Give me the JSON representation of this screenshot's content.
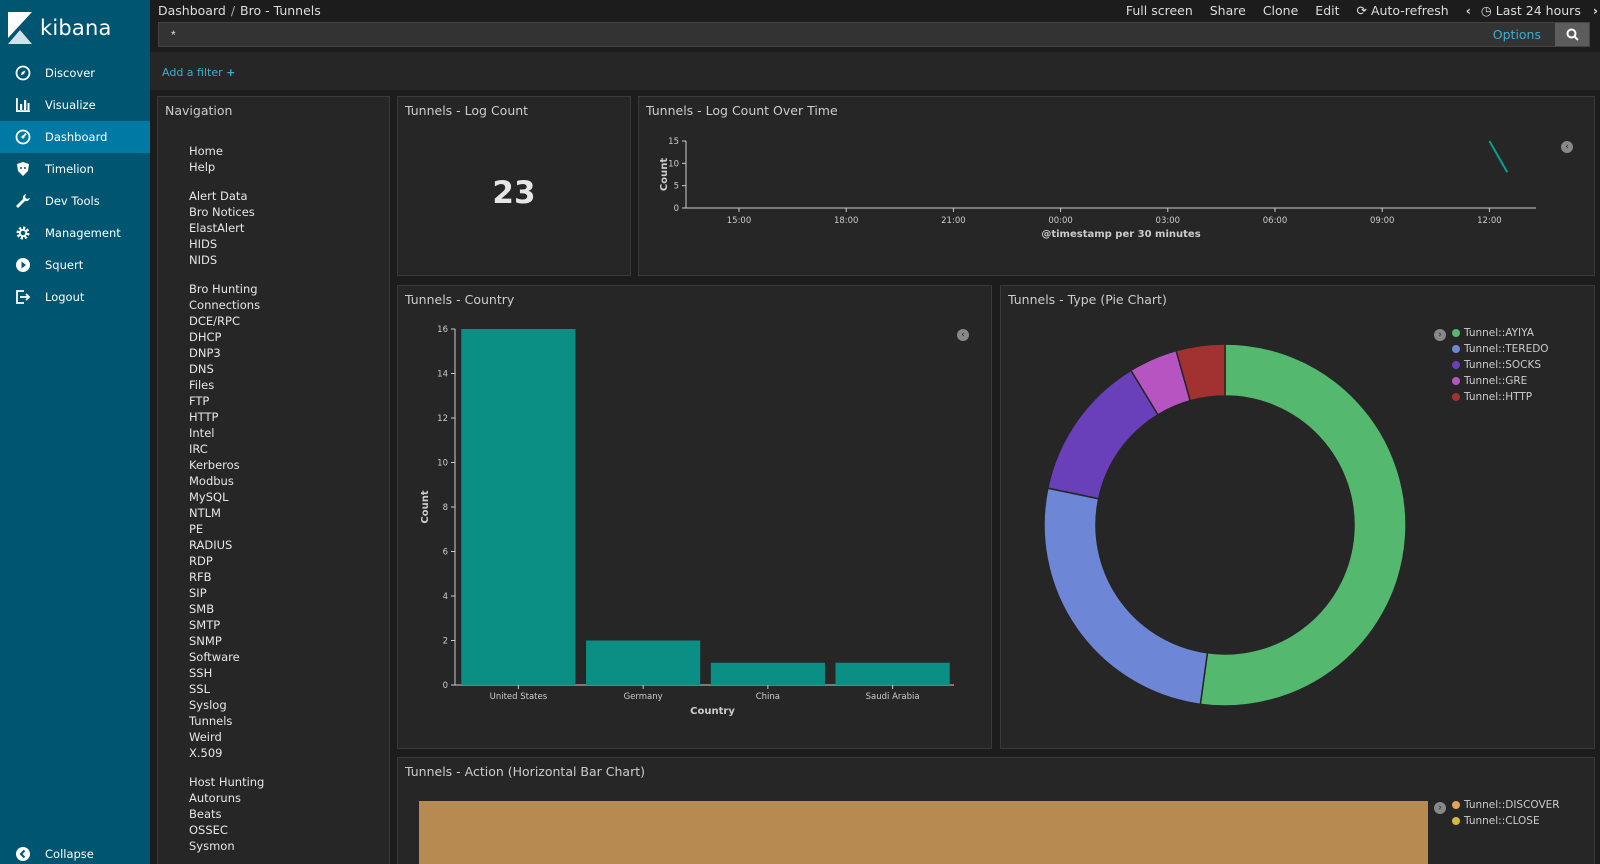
{
  "app": {
    "logo_text": "kibana"
  },
  "sidebar": {
    "items": [
      {
        "label": "Discover",
        "icon": "compass-icon"
      },
      {
        "label": "Visualize",
        "icon": "bar-chart-icon"
      },
      {
        "label": "Dashboard",
        "icon": "dashboard-icon",
        "active": true
      },
      {
        "label": "Timelion",
        "icon": "timelion-icon"
      },
      {
        "label": "Dev Tools",
        "icon": "wrench-icon"
      },
      {
        "label": "Management",
        "icon": "gear-icon"
      },
      {
        "label": "Squert",
        "icon": "play-icon"
      },
      {
        "label": "Logout",
        "icon": "logout-icon"
      }
    ],
    "collapse_label": "Collapse"
  },
  "topbar": {
    "breadcrumb": [
      "Dashboard",
      "Bro - Tunnels"
    ],
    "actions": {
      "full_screen": "Full screen",
      "share": "Share",
      "clone": "Clone",
      "edit": "Edit",
      "auto_refresh": "Auto-refresh",
      "time_range": "Last 24 hours"
    }
  },
  "query": {
    "value": "*",
    "options_label": "Options"
  },
  "filter": {
    "add_label": "Add a filter"
  },
  "panels": {
    "navigation": {
      "title": "Navigation",
      "groups": [
        {
          "items": [
            "Home",
            "Help"
          ]
        },
        {
          "heading": "Alert Data",
          "items": [
            "Bro Notices",
            "ElastAlert",
            "HIDS",
            "NIDS"
          ]
        },
        {
          "heading": "Bro Hunting",
          "items": [
            "Connections",
            "DCE/RPC",
            "DHCP",
            "DNP3",
            "DNS",
            "Files",
            "FTP",
            "HTTP",
            "Intel",
            "IRC",
            "Kerberos",
            "Modbus",
            "MySQL",
            "NTLM",
            "PE",
            "RADIUS",
            "RDP",
            "RFB",
            "SIP",
            "SMB",
            "SMTP",
            "SNMP",
            "Software",
            "SSH",
            "SSL",
            "Syslog",
            "Tunnels",
            "Weird",
            "X.509"
          ]
        },
        {
          "heading": "Host Hunting",
          "items": [
            "Autoruns",
            "Beats",
            "OSSEC",
            "Sysmon"
          ]
        }
      ]
    },
    "log_count": {
      "title": "Tunnels - Log Count",
      "value": "23"
    },
    "over_time": {
      "title": "Tunnels - Log Count Over Time"
    },
    "country": {
      "title": "Tunnels - Country"
    },
    "type_pie": {
      "title": "Tunnels - Type (Pie Chart)"
    },
    "action": {
      "title": "Tunnels - Action (Horizontal Bar Chart)"
    }
  },
  "chart_data": [
    {
      "id": "over_time",
      "type": "line",
      "xlabel": "@timestamp per 30 minutes",
      "ylabel": "Count",
      "x_ticks": [
        "15:00",
        "18:00",
        "21:00",
        "00:00",
        "03:00",
        "06:00",
        "09:00",
        "12:00"
      ],
      "y_ticks": [
        0,
        5,
        10,
        15
      ],
      "ylim": [
        0,
        15
      ],
      "series": [
        {
          "x": [
            "12:00",
            "12:30"
          ],
          "values": [
            15,
            8
          ],
          "color": "#0b9e8c"
        }
      ]
    },
    {
      "id": "country",
      "type": "bar",
      "categories": [
        "United States",
        "Germany",
        "China",
        "Saudi Arabia"
      ],
      "values": [
        16,
        2,
        1,
        1
      ],
      "xlabel": "Country",
      "ylabel": "Count",
      "ylim": [
        0,
        16
      ],
      "y_ticks": [
        0,
        2,
        4,
        6,
        8,
        10,
        12,
        14,
        16
      ],
      "color": "#0b8f84"
    },
    {
      "id": "type_pie",
      "type": "pie",
      "donut": true,
      "legend_position": "top-right",
      "labels": [
        "Tunnel::AYIYA",
        "Tunnel::TEREDO",
        "Tunnel::SOCKS",
        "Tunnel::GRE",
        "Tunnel::HTTP"
      ],
      "values": [
        12,
        6,
        3,
        1,
        1
      ],
      "colors": [
        "#54b86f",
        "#6e86d6",
        "#6a3fba",
        "#b654c2",
        "#a23232"
      ]
    },
    {
      "id": "action",
      "type": "bar",
      "orientation": "horizontal",
      "legend_position": "top-right",
      "labels": [
        "Tunnel::DISCOVER",
        "Tunnel::CLOSE"
      ],
      "colors": [
        "#e4a25e",
        "#d6b83e"
      ],
      "bar_color": "#b68a50"
    }
  ]
}
